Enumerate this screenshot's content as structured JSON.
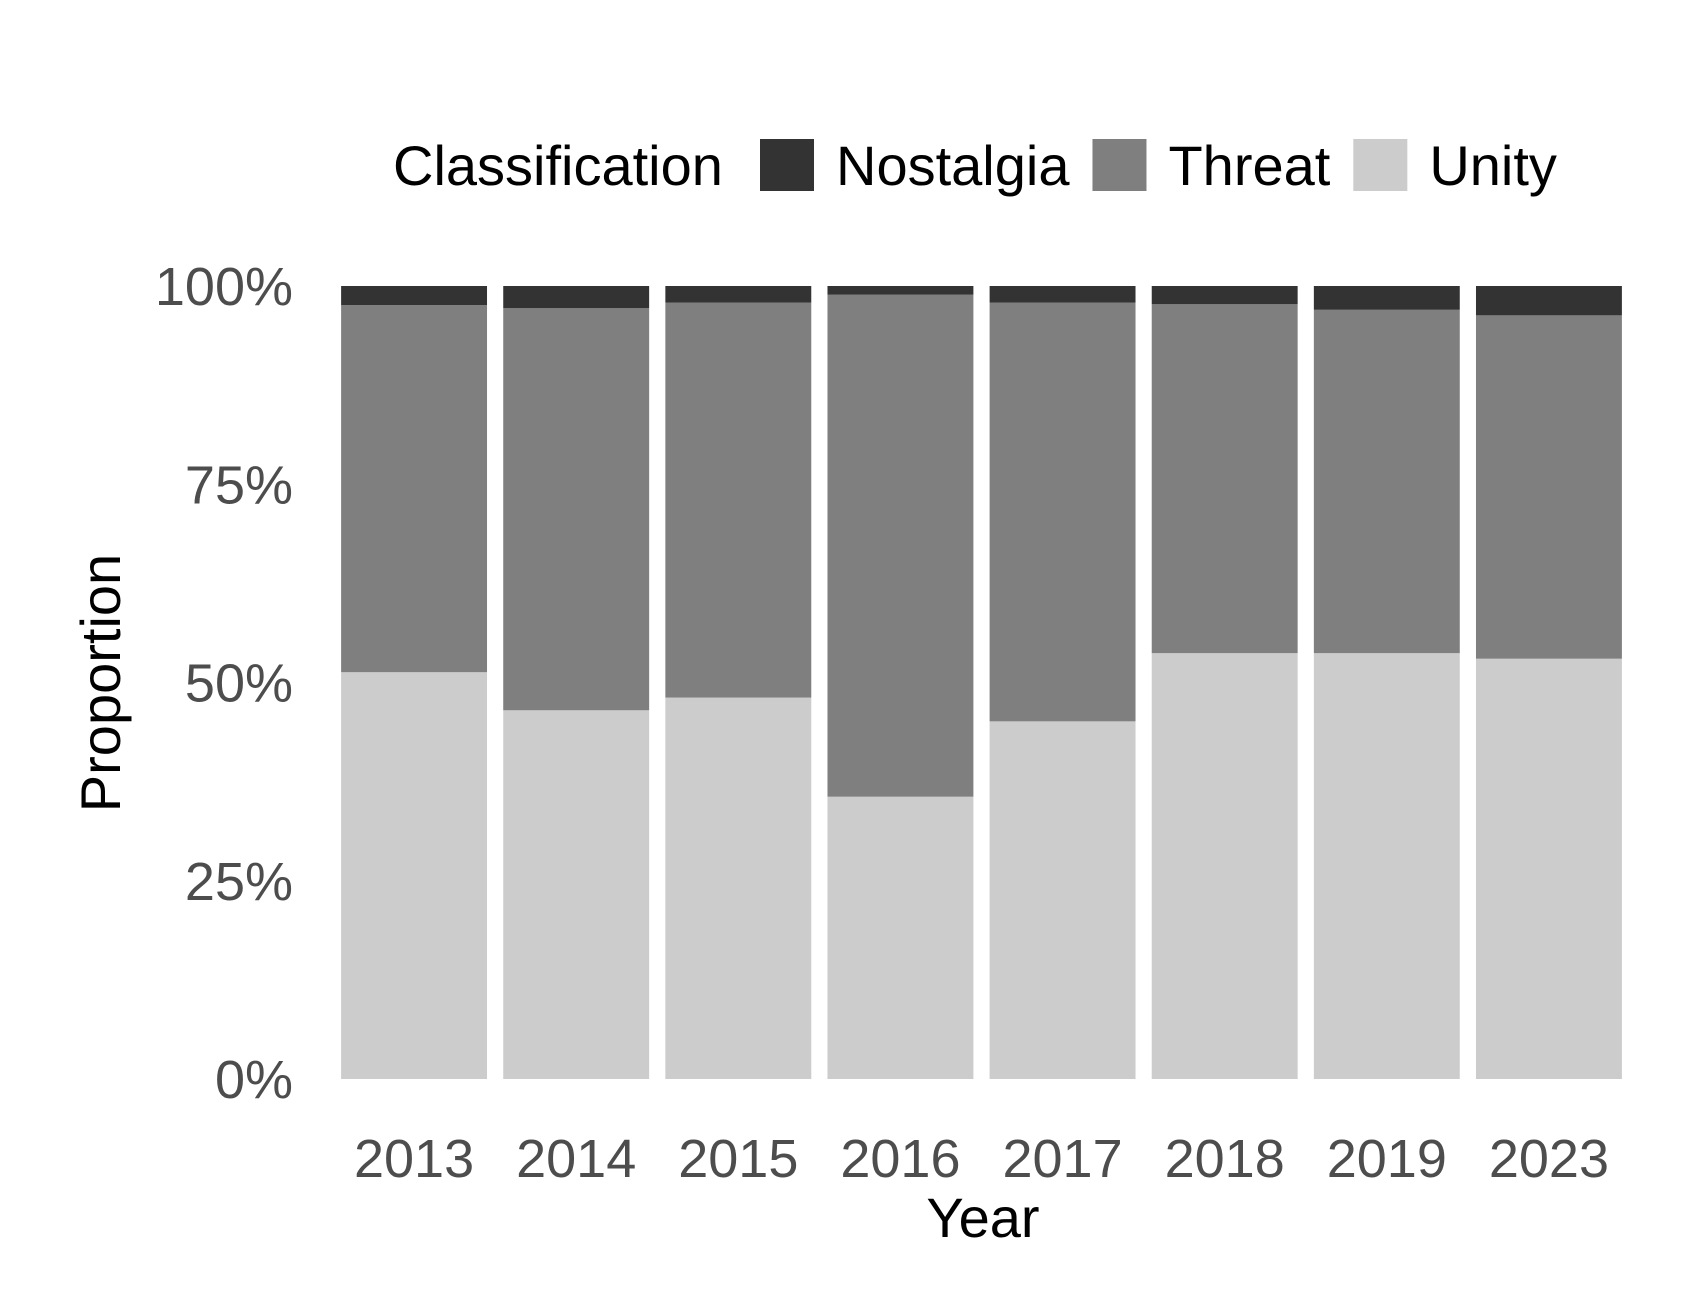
{
  "chart_data": {
    "type": "bar",
    "stacked": true,
    "normalized": true,
    "categories": [
      "2013",
      "2014",
      "2015",
      "2016",
      "2017",
      "2018",
      "2019",
      "2023"
    ],
    "series": [
      {
        "name": "Unity",
        "color": "#cccccc",
        "values": [
          51.3,
          46.5,
          48.1,
          35.6,
          45.1,
          53.7,
          53.7,
          53.0
        ]
      },
      {
        "name": "Threat",
        "color": "#7f7f7f",
        "values": [
          46.3,
          50.7,
          49.8,
          63.3,
          52.8,
          44.0,
          43.3,
          43.3
        ]
      },
      {
        "name": "Nostalgia",
        "color": "#333333",
        "values": [
          2.4,
          2.8,
          2.1,
          1.1,
          2.1,
          2.3,
          3.0,
          3.7
        ]
      }
    ],
    "legend": {
      "title": "Classification",
      "position": "top",
      "order": [
        "Nostalgia",
        "Threat",
        "Unity"
      ]
    },
    "xlabel": "Year",
    "ylabel": "Proportion",
    "ylim": [
      0,
      100
    ],
    "yticks": [
      "0%",
      "25%",
      "50%",
      "75%",
      "100%"
    ],
    "grid": false
  }
}
